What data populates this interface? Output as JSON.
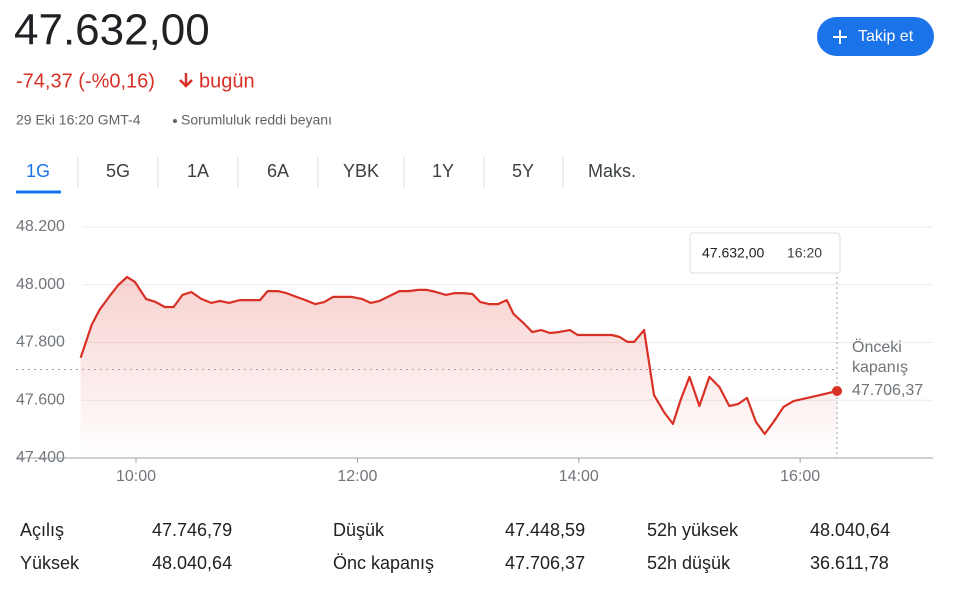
{
  "header": {
    "price": "47.632,00",
    "change": "-74,37 (-%0,16)",
    "change_period": "bugün",
    "timestamp": "29 Eki 16:20 GMT-4",
    "disclaimer": "Sorumluluk reddi beyanı",
    "follow_button": "Takip et"
  },
  "tabs": [
    "1G",
    "5G",
    "1A",
    "6A",
    "YBK",
    "1Y",
    "5Y",
    "Maks."
  ],
  "chart_data": {
    "type": "line",
    "color": "#d93025",
    "x": [
      9.5,
      9.6,
      9.67,
      9.77,
      9.84,
      9.92,
      9.99,
      10.09,
      10.18,
      10.26,
      10.34,
      10.42,
      10.5,
      10.59,
      10.68,
      10.76,
      10.84,
      10.94,
      11.03,
      11.12,
      11.19,
      11.28,
      11.36,
      11.45,
      11.53,
      11.62,
      11.7,
      11.78,
      11.87,
      11.95,
      12.04,
      12.12,
      12.2,
      12.29,
      12.38,
      12.46,
      12.55,
      12.63,
      12.71,
      12.8,
      12.88,
      12.96,
      13.04,
      13.11,
      13.19,
      13.27,
      13.35,
      13.41,
      13.5,
      13.58,
      13.66,
      13.74,
      13.82,
      13.92,
      13.99,
      14.1,
      14.19,
      14.3,
      14.37,
      14.44,
      14.5,
      14.59,
      14.68,
      14.77,
      14.85,
      14.92,
      15.0,
      15.09,
      15.18,
      15.27,
      15.36,
      15.44,
      15.52,
      15.6,
      15.68,
      15.76,
      15.85,
      15.94,
      16.02,
      16.1,
      16.18,
      16.333
    ],
    "values": [
      47747,
      47861,
      47913,
      47965,
      47999,
      48027,
      48010,
      47951,
      47940,
      47923,
      47923,
      47965,
      47975,
      47951,
      47937,
      47944,
      47937,
      47947,
      47947,
      47947,
      47978,
      47978,
      47971,
      47958,
      47947,
      47933,
      47940,
      47958,
      47958,
      47958,
      47951,
      47937,
      47944,
      47961,
      47978,
      47978,
      47982,
      47982,
      47975,
      47965,
      47971,
      47971,
      47968,
      47940,
      47933,
      47933,
      47947,
      47899,
      47868,
      47836,
      47843,
      47833,
      47836,
      47843,
      47826,
      47826,
      47826,
      47826,
      47819,
      47802,
      47802,
      47843,
      47618,
      47559,
      47518,
      47601,
      47681,
      47580,
      47681,
      47646,
      47580,
      47587,
      47608,
      47525,
      47483,
      47525,
      47577,
      47597,
      47604,
      47611,
      47618,
      47632
    ],
    "xlim": [
      8.916,
      17.2
    ],
    "xticks": [
      {
        "value": 10,
        "label": "10:00"
      },
      {
        "value": 12,
        "label": "12:00"
      },
      {
        "value": 14,
        "label": "14:00"
      },
      {
        "value": 16,
        "label": "16:00"
      }
    ],
    "ylim": [
      47400,
      48200
    ],
    "yticks": [
      {
        "value": 47400,
        "label": "47.400"
      },
      {
        "value": 47600,
        "label": "47.600"
      },
      {
        "value": 47800,
        "label": "47.800"
      },
      {
        "value": 48000,
        "label": "48.000"
      },
      {
        "value": 48200,
        "label": "48.200"
      }
    ],
    "grid": true,
    "previous_close": {
      "label": "Önceki kapanış",
      "value": 47706.37,
      "value_label": "47.706,37"
    },
    "tooltip": {
      "value_label": "47.632,00",
      "time": "16:20"
    }
  },
  "stats": [
    [
      {
        "label": "Açılış",
        "value": "47.746,79"
      },
      {
        "label": "Düşük",
        "value": "47.448,59"
      },
      {
        "label": "52h yüksek",
        "value": "48.040,64"
      }
    ],
    [
      {
        "label": "Yüksek",
        "value": "48.040,64"
      },
      {
        "label": "Önc kapanış",
        "value": "47.706,37"
      },
      {
        "label": "52h düşük",
        "value": "36.611,78"
      }
    ]
  ]
}
